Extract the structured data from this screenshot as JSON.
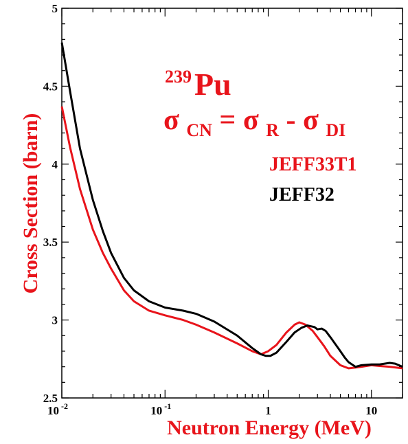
{
  "chart_data": {
    "type": "line",
    "xlabel": "Neutron Energy (MeV)",
    "ylabel": "Cross Section (barn)",
    "x_scale": "log",
    "xlim": [
      0.01,
      20
    ],
    "ylim": [
      2.5,
      5
    ],
    "x_ticks": [
      {
        "value": 0.01,
        "base": "10",
        "exp": "-2"
      },
      {
        "value": 0.1,
        "base": "10",
        "exp": "-1"
      },
      {
        "value": 1,
        "base": "1",
        "exp": ""
      },
      {
        "value": 10,
        "base": "10",
        "exp": ""
      }
    ],
    "y_ticks": [
      {
        "value": 2.5,
        "label": "2.5"
      },
      {
        "value": 3,
        "label": "3"
      },
      {
        "value": 3.5,
        "label": "3.5"
      },
      {
        "value": 4,
        "label": "4"
      },
      {
        "value": 4.5,
        "label": "4.5"
      },
      {
        "value": 5,
        "label": "5"
      }
    ],
    "grid": false,
    "legend_position": "top-right",
    "annotation": {
      "isotope_mass": "239",
      "isotope_symbol": "Pu",
      "formula": {
        "sigma": "σ",
        "sub_cn": "CN",
        "eq": "=",
        "sub_r": "R",
        "minus": "-",
        "sub_di": "DI"
      },
      "color": "#e8141b"
    },
    "series": [
      {
        "name": "JEFF33T1",
        "color": "#e8141b",
        "x": [
          0.01,
          0.012,
          0.015,
          0.02,
          0.025,
          0.03,
          0.04,
          0.05,
          0.07,
          0.1,
          0.15,
          0.2,
          0.3,
          0.5,
          0.7,
          0.85,
          1.0,
          1.2,
          1.5,
          1.8,
          2.0,
          2.3,
          2.7,
          3.0,
          3.5,
          4.0,
          5.0,
          6.0,
          7.0,
          8.0,
          10.0,
          12.0,
          15.0,
          20.0
        ],
        "values": [
          4.37,
          4.11,
          3.84,
          3.58,
          3.43,
          3.33,
          3.19,
          3.12,
          3.06,
          3.03,
          3.0,
          2.97,
          2.92,
          2.85,
          2.8,
          2.78,
          2.8,
          2.84,
          2.92,
          2.97,
          2.985,
          2.97,
          2.93,
          2.89,
          2.83,
          2.77,
          2.71,
          2.69,
          2.695,
          2.7,
          2.71,
          2.705,
          2.7,
          2.69
        ]
      },
      {
        "name": "JEFF32",
        "color": "#000000",
        "x": [
          0.01,
          0.012,
          0.015,
          0.02,
          0.025,
          0.03,
          0.04,
          0.05,
          0.07,
          0.1,
          0.15,
          0.2,
          0.3,
          0.5,
          0.7,
          0.85,
          0.95,
          1.05,
          1.2,
          1.5,
          1.8,
          2.1,
          2.4,
          2.8,
          3.0,
          3.3,
          3.6,
          4.0,
          5.0,
          5.5,
          6.0,
          7.0,
          8.0,
          10.0,
          12.0,
          15.0,
          17.0,
          20.0
        ],
        "values": [
          4.78,
          4.47,
          4.1,
          3.77,
          3.57,
          3.43,
          3.27,
          3.19,
          3.12,
          3.08,
          3.06,
          3.04,
          2.99,
          2.9,
          2.82,
          2.78,
          2.77,
          2.77,
          2.79,
          2.86,
          2.92,
          2.95,
          2.965,
          2.955,
          2.94,
          2.945,
          2.93,
          2.89,
          2.8,
          2.76,
          2.73,
          2.7,
          2.71,
          2.715,
          2.715,
          2.725,
          2.72,
          2.7
        ]
      }
    ]
  }
}
